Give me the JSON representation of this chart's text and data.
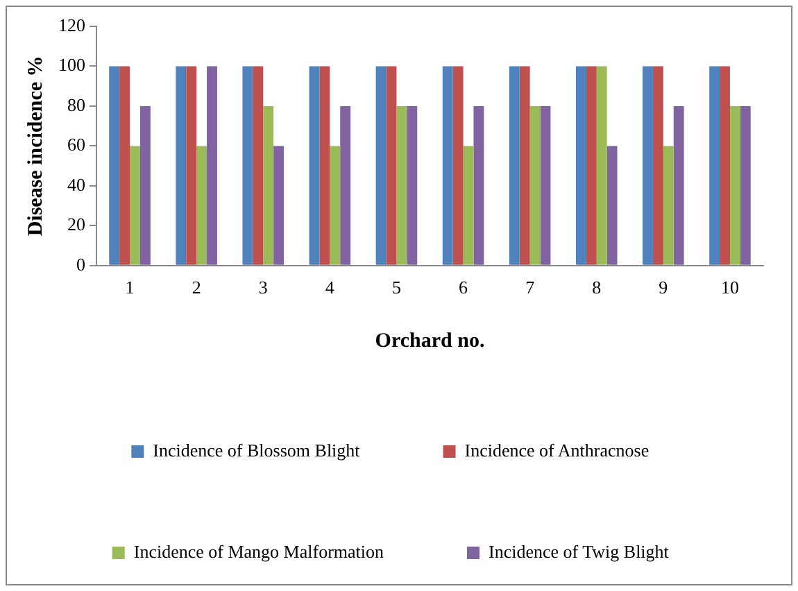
{
  "chart_data": {
    "type": "bar",
    "xlabel": "Orchard no.",
    "ylabel": "Disease incidence %",
    "categories": [
      "1",
      "2",
      "3",
      "4",
      "5",
      "6",
      "7",
      "8",
      "9",
      "10"
    ],
    "series": [
      {
        "name": "Incidence of Blossom Blight",
        "color": "#4f81bd",
        "values": [
          100,
          100,
          100,
          100,
          100,
          100,
          100,
          100,
          100,
          100
        ]
      },
      {
        "name": "Incidence of Anthracnose",
        "color": "#c0504d",
        "values": [
          100,
          100,
          100,
          100,
          100,
          100,
          100,
          100,
          100,
          100
        ]
      },
      {
        "name": "Incidence of Mango Malformation",
        "color": "#9bbb59",
        "values": [
          60,
          60,
          80,
          60,
          80,
          60,
          80,
          100,
          60,
          80
        ]
      },
      {
        "name": "Incidence of Twig Blight",
        "color": "#8064a2",
        "values": [
          80,
          100,
          60,
          80,
          80,
          80,
          80,
          60,
          80,
          80
        ]
      }
    ],
    "ylim": [
      0,
      120
    ],
    "yticks": [
      0,
      20,
      40,
      60,
      80,
      100,
      120
    ],
    "grid": false,
    "legend": "bottom"
  }
}
